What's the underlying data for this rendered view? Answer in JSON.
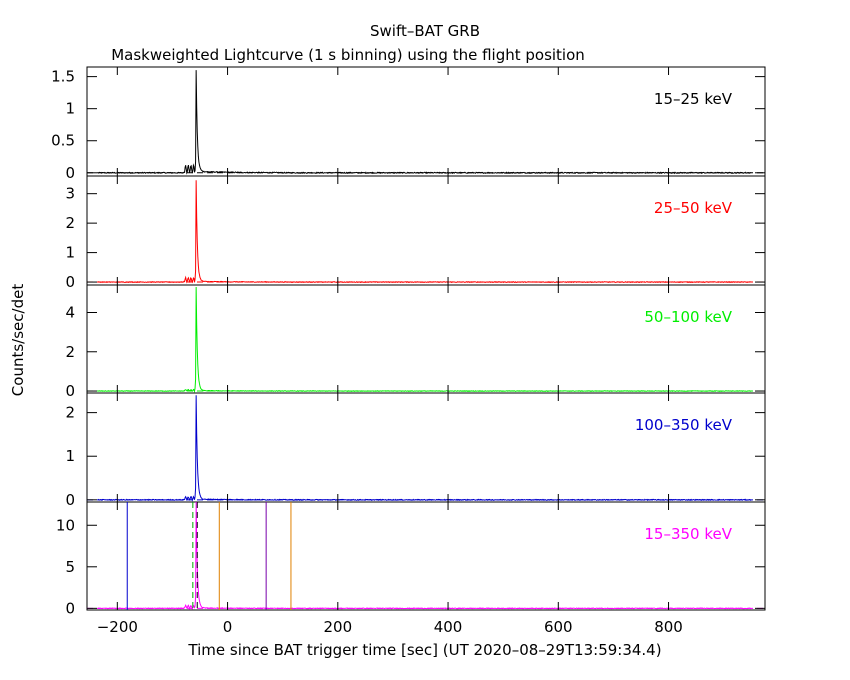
{
  "figure": {
    "title": "Swift–BAT GRB",
    "subtitle": "Maskweighted Lightcurve (1 s binning) using the flight position",
    "xlabel": "Time since BAT trigger time [sec] (UT 2020–08–29T13:59:34.4)",
    "ylabel": "Counts/sec/det"
  },
  "chart_data": {
    "type": "line",
    "xlim": [
      -255,
      975
    ],
    "x_ticks": [
      -200,
      0,
      200,
      400,
      600,
      800
    ],
    "x_tick_labels": [
      "−200",
      "0",
      "200",
      "400",
      "600",
      "800"
    ],
    "peak_time": -57,
    "panels": [
      {
        "band": "15–25 keV",
        "color": "#000000",
        "ylim": [
          -0.05,
          1.65
        ],
        "y_ticks": [
          0,
          0.5,
          1,
          1.5
        ],
        "y_tick_labels": [
          "0",
          "0.5",
          "1",
          "1.5"
        ],
        "peak": 1.6,
        "precursor": 0.12,
        "tail": 0.02,
        "noise": 0.008
      },
      {
        "band": "25–50 keV",
        "color": "#ff0000",
        "ylim": [
          -0.1,
          3.6
        ],
        "y_ticks": [
          0,
          1,
          2,
          3
        ],
        "y_tick_labels": [
          "0",
          "1",
          "2",
          "3"
        ],
        "peak": 3.45,
        "precursor": 0.15,
        "tail": 0.02,
        "noise": 0.012
      },
      {
        "band": "50–100 keV",
        "color": "#00ee00",
        "ylim": [
          -0.1,
          5.4
        ],
        "y_ticks": [
          0,
          2,
          4
        ],
        "y_tick_labels": [
          "0",
          "2",
          "4"
        ],
        "peak": 5.3,
        "precursor": 0.08,
        "tail": 0.02,
        "noise": 0.015
      },
      {
        "band": "100–350 keV",
        "color": "#0000cc",
        "ylim": [
          -0.05,
          2.45
        ],
        "y_ticks": [
          0,
          1,
          2
        ],
        "y_tick_labels": [
          "0",
          "1",
          "2"
        ],
        "peak": 2.4,
        "precursor": 0.07,
        "tail": 0.015,
        "noise": 0.01
      },
      {
        "band": "15–350 keV",
        "color": "#ff00ff",
        "ylim": [
          -0.2,
          12.8
        ],
        "y_ticks": [
          0,
          5,
          10
        ],
        "y_tick_labels": [
          "0",
          "5",
          "10"
        ],
        "peak": 12.8,
        "precursor": 0.35,
        "tail": 0.05,
        "noise": 0.04
      }
    ],
    "markers": [
      {
        "x": -182,
        "color": "#0000cc",
        "style": "solid"
      },
      {
        "x": -63,
        "color": "#00aa00",
        "style": "dashed"
      },
      {
        "x": -55,
        "color": "#000000",
        "style": "dashed"
      },
      {
        "x": -15,
        "color": "#e08000",
        "style": "solid"
      },
      {
        "x": 70,
        "color": "#7700aa",
        "style": "solid"
      },
      {
        "x": 115,
        "color": "#e08000",
        "style": "solid"
      }
    ]
  }
}
